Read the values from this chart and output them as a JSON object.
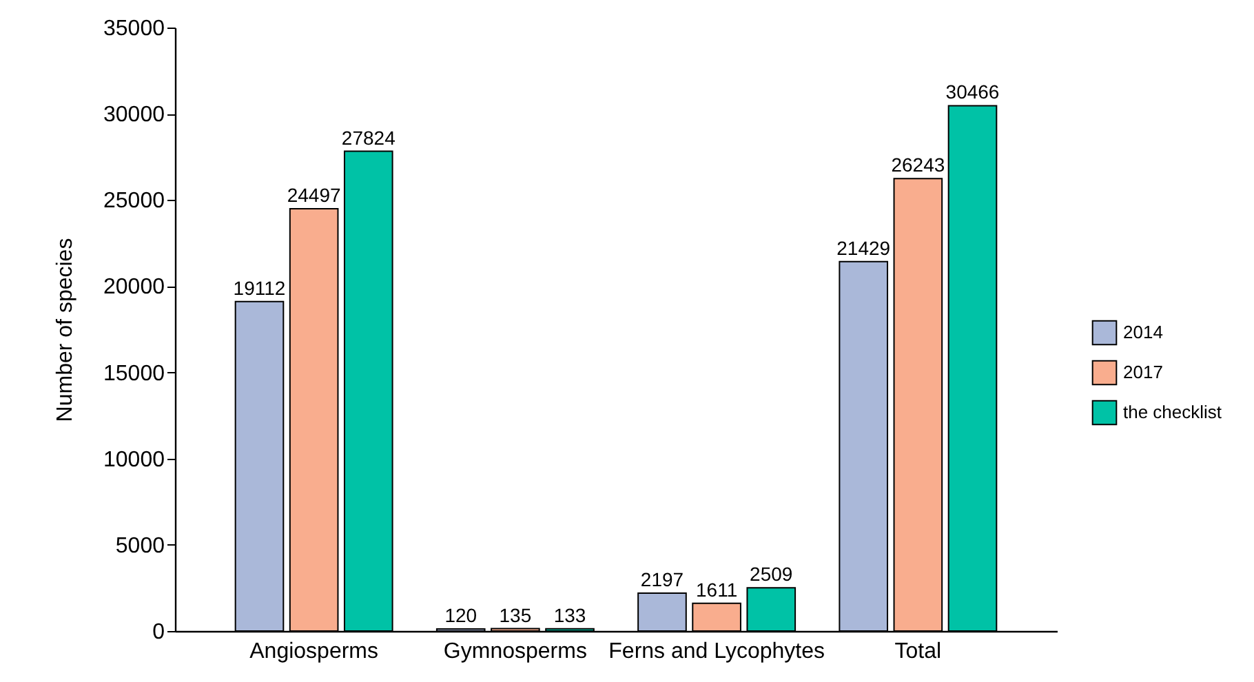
{
  "chart_data": {
    "type": "bar",
    "ylabel": "Number of species",
    "categories": [
      "Angiosperms",
      "Gymnosperms",
      "Ferns and Lycophytes",
      "Total"
    ],
    "series": [
      {
        "name": "2014",
        "color": "#aab8d9",
        "values": [
          19112,
          120,
          2197,
          21429
        ]
      },
      {
        "name": "2017",
        "color": "#f9ad8e",
        "values": [
          24497,
          135,
          1611,
          26243
        ]
      },
      {
        "name": "the checklist",
        "color": "#00c2a6",
        "values": [
          27824,
          133,
          2509,
          30466
        ]
      }
    ],
    "ylim": [
      0,
      35000
    ],
    "yticks": [
      0,
      5000,
      10000,
      15000,
      20000,
      25000,
      30000,
      35000
    ],
    "grid": false,
    "legend": "right",
    "data_labels": true
  }
}
